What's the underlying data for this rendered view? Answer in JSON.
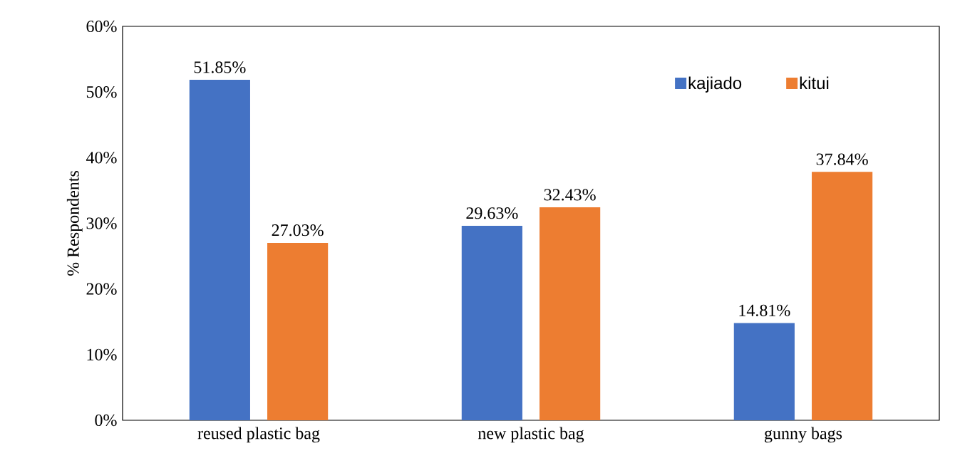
{
  "chart_data": {
    "type": "bar",
    "ylabel": "% Respondents",
    "categories": [
      "reused plastic bag",
      "new plastic bag",
      "gunny bags"
    ],
    "series": [
      {
        "name": "kajiado",
        "color": "#4472c4",
        "values": [
          51.85,
          29.63,
          14.81
        ],
        "value_labels": [
          "51.85%",
          "29.63%",
          "14.81%"
        ]
      },
      {
        "name": "kitui",
        "color": "#ed7d31",
        "values": [
          27.03,
          32.43,
          37.84
        ],
        "value_labels": [
          "27.03%",
          "32.43%",
          "37.84%"
        ]
      }
    ],
    "ylim": [
      0,
      60
    ],
    "yticks": [
      {
        "value": 0,
        "label": "0%"
      },
      {
        "value": 10,
        "label": "10%"
      },
      {
        "value": 20,
        "label": "20%"
      },
      {
        "value": 30,
        "label": "30%"
      },
      {
        "value": 40,
        "label": "40%"
      },
      {
        "value": 50,
        "label": "50%"
      },
      {
        "value": 60,
        "label": "60%"
      }
    ],
    "grid": false,
    "legend": "top right"
  }
}
